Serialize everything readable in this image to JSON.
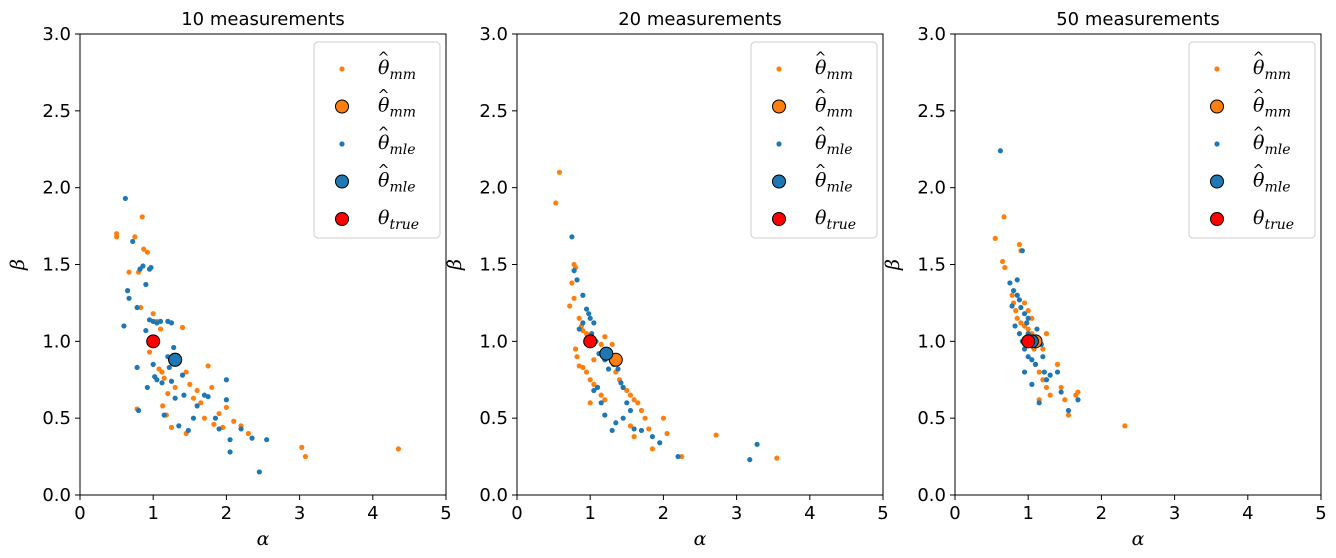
{
  "colors": {
    "mm": "#ff7f0e",
    "mle": "#1f77b4",
    "true": "#ff0000",
    "edge": "#000000"
  },
  "legend": {
    "placement": "top-right",
    "items": [
      {
        "kind": "small",
        "series": "mm",
        "symbol": "θ",
        "hat": true,
        "sub": "mm"
      },
      {
        "kind": "big",
        "series": "mm",
        "symbol": "θ",
        "hat": true,
        "sub": "mm"
      },
      {
        "kind": "small",
        "series": "mle",
        "symbol": "θ",
        "hat": true,
        "sub": "mle"
      },
      {
        "kind": "big",
        "series": "mle",
        "symbol": "θ",
        "hat": true,
        "sub": "mle"
      },
      {
        "kind": "big",
        "series": "true",
        "symbol": "θ",
        "hat": false,
        "sub": "true"
      }
    ]
  },
  "chart_data": [
    {
      "type": "scatter",
      "title": "10 measurements",
      "xlabel": "α",
      "ylabel": "β",
      "xlim": [
        0,
        5
      ],
      "ylim": [
        0,
        3
      ],
      "xticks": [
        0,
        1,
        2,
        3,
        4,
        5
      ],
      "yticks": [
        0.0,
        0.5,
        1.0,
        1.5,
        2.0,
        2.5,
        3.0
      ],
      "grid": false,
      "mm_points": [
        [
          0.5,
          1.7
        ],
        [
          0.5,
          1.68
        ],
        [
          0.75,
          1.68
        ],
        [
          0.85,
          1.81
        ],
        [
          0.87,
          1.6
        ],
        [
          0.92,
          1.58
        ],
        [
          0.67,
          1.45
        ],
        [
          0.8,
          1.45
        ],
        [
          0.83,
          1.22
        ],
        [
          1.0,
          1.18
        ],
        [
          1.05,
          1.13
        ],
        [
          1.1,
          1.08
        ],
        [
          1.08,
          0.82
        ],
        [
          1.12,
          0.8
        ],
        [
          1.15,
          0.76
        ],
        [
          1.2,
          0.66
        ],
        [
          1.13,
          0.58
        ],
        [
          1.18,
          0.52
        ],
        [
          1.25,
          0.44
        ],
        [
          1.3,
          0.7
        ],
        [
          1.4,
          1.09
        ],
        [
          1.45,
          0.8
        ],
        [
          1.5,
          0.72
        ],
        [
          1.55,
          0.63
        ],
        [
          1.6,
          0.68
        ],
        [
          1.65,
          0.6
        ],
        [
          1.7,
          0.5
        ],
        [
          1.75,
          0.84
        ],
        [
          1.8,
          0.7
        ],
        [
          1.83,
          0.46
        ],
        [
          1.9,
          0.53
        ],
        [
          1.95,
          0.44
        ],
        [
          2.0,
          0.57
        ],
        [
          2.1,
          0.48
        ],
        [
          2.2,
          0.45
        ],
        [
          2.3,
          0.4
        ],
        [
          1.45,
          0.4
        ],
        [
          3.03,
          0.31
        ],
        [
          3.08,
          0.25
        ],
        [
          4.35,
          0.3
        ],
        [
          0.78,
          0.56
        ],
        [
          0.95,
          0.93
        ]
      ],
      "mle_points": [
        [
          0.62,
          1.93
        ],
        [
          0.65,
          1.33
        ],
        [
          0.67,
          1.28
        ],
        [
          0.72,
          1.65
        ],
        [
          0.6,
          1.1
        ],
        [
          0.78,
          1.22
        ],
        [
          0.82,
          1.47
        ],
        [
          0.86,
          1.49
        ],
        [
          0.9,
          1.37
        ],
        [
          0.95,
          1.47
        ],
        [
          0.97,
          1.48
        ],
        [
          0.95,
          1.14
        ],
        [
          0.9,
          1.07
        ],
        [
          1.0,
          1.13
        ],
        [
          1.05,
          1.12
        ],
        [
          1.1,
          1.13
        ],
        [
          1.2,
          1.13
        ],
        [
          1.25,
          1.12
        ],
        [
          1.28,
          0.96
        ],
        [
          0.78,
          0.83
        ],
        [
          0.8,
          0.55
        ],
        [
          1.0,
          0.85
        ],
        [
          1.02,
          0.77
        ],
        [
          1.05,
          0.75
        ],
        [
          1.12,
          0.73
        ],
        [
          1.15,
          0.52
        ],
        [
          1.2,
          0.9
        ],
        [
          1.22,
          0.83
        ],
        [
          1.25,
          0.74
        ],
        [
          1.3,
          0.63
        ],
        [
          1.35,
          0.45
        ],
        [
          1.4,
          0.78
        ],
        [
          1.42,
          0.65
        ],
        [
          1.48,
          0.42
        ],
        [
          1.55,
          0.5
        ],
        [
          1.6,
          0.58
        ],
        [
          1.7,
          0.65
        ],
        [
          1.75,
          0.64
        ],
        [
          1.85,
          0.5
        ],
        [
          1.9,
          0.43
        ],
        [
          2.0,
          0.62
        ],
        [
          2.0,
          0.75
        ],
        [
          2.05,
          0.36
        ],
        [
          2.05,
          0.28
        ],
        [
          2.2,
          0.43
        ],
        [
          2.35,
          0.37
        ],
        [
          2.45,
          0.15
        ],
        [
          2.55,
          0.36
        ],
        [
          0.92,
          0.7
        ]
      ],
      "mm_mean": [
        1.3,
        0.88
      ],
      "mle_mean": [
        1.3,
        0.88
      ],
      "true": [
        1.0,
        1.0
      ]
    },
    {
      "type": "scatter",
      "title": "20 measurements",
      "xlabel": "α",
      "ylabel": "β",
      "xlim": [
        0,
        5
      ],
      "ylim": [
        0,
        3
      ],
      "xticks": [
        0,
        1,
        2,
        3,
        4,
        5
      ],
      "yticks": [
        0.0,
        0.5,
        1.0,
        1.5,
        2.0,
        2.5,
        3.0
      ],
      "grid": false,
      "mm_points": [
        [
          0.58,
          2.1
        ],
        [
          0.53,
          1.9
        ],
        [
          0.78,
          1.5
        ],
        [
          0.8,
          1.48
        ],
        [
          0.75,
          1.38
        ],
        [
          0.78,
          1.28
        ],
        [
          0.72,
          1.23
        ],
        [
          0.85,
          1.15
        ],
        [
          0.88,
          1.1
        ],
        [
          0.9,
          1.07
        ],
        [
          0.95,
          1.05
        ],
        [
          0.8,
          0.95
        ],
        [
          0.82,
          0.9
        ],
        [
          0.85,
          0.84
        ],
        [
          0.9,
          0.83
        ],
        [
          0.95,
          0.8
        ],
        [
          1.0,
          0.75
        ],
        [
          1.05,
          0.72
        ],
        [
          1.1,
          0.7
        ],
        [
          1.15,
          0.65
        ],
        [
          1.2,
          0.62
        ],
        [
          1.3,
          0.98
        ],
        [
          1.35,
          0.8
        ],
        [
          1.4,
          0.75
        ],
        [
          1.45,
          0.7
        ],
        [
          1.5,
          0.68
        ],
        [
          1.55,
          0.65
        ],
        [
          1.6,
          0.62
        ],
        [
          1.65,
          0.6
        ],
        [
          1.7,
          0.55
        ],
        [
          1.75,
          0.5
        ],
        [
          1.8,
          0.43
        ],
        [
          1.85,
          0.3
        ],
        [
          2.0,
          0.5
        ],
        [
          2.05,
          0.4
        ],
        [
          2.25,
          0.25
        ],
        [
          2.72,
          0.39
        ],
        [
          3.55,
          0.24
        ],
        [
          1.0,
          0.6
        ],
        [
          1.55,
          0.45
        ],
        [
          1.6,
          0.38
        ],
        [
          1.05,
          0.88
        ],
        [
          1.15,
          0.98
        ],
        [
          1.2,
          1.03
        ]
      ],
      "mle_points": [
        [
          0.75,
          1.68
        ],
        [
          0.78,
          1.46
        ],
        [
          0.82,
          1.4
        ],
        [
          0.9,
          1.3
        ],
        [
          0.95,
          1.21
        ],
        [
          0.98,
          1.18
        ],
        [
          1.0,
          1.15
        ],
        [
          1.05,
          1.12
        ],
        [
          0.9,
          1.12
        ],
        [
          1.02,
          1.05
        ],
        [
          1.08,
          1.0
        ],
        [
          1.12,
          0.92
        ],
        [
          1.2,
          0.88
        ],
        [
          1.25,
          0.82
        ],
        [
          1.32,
          0.85
        ],
        [
          1.38,
          0.82
        ],
        [
          1.42,
          0.73
        ],
        [
          1.45,
          0.7
        ],
        [
          1.5,
          0.6
        ],
        [
          1.55,
          0.55
        ],
        [
          1.1,
          0.7
        ],
        [
          1.15,
          0.6
        ],
        [
          1.2,
          0.52
        ],
        [
          1.3,
          0.42
        ],
        [
          1.05,
          0.68
        ],
        [
          1.45,
          0.5
        ],
        [
          1.6,
          0.43
        ],
        [
          1.7,
          0.42
        ],
        [
          1.85,
          0.38
        ],
        [
          1.95,
          0.34
        ],
        [
          2.2,
          0.25
        ],
        [
          3.18,
          0.23
        ],
        [
          3.28,
          0.33
        ],
        [
          1.35,
          0.47
        ],
        [
          0.85,
          1.08
        ]
      ],
      "mm_mean": [
        1.35,
        0.88
      ],
      "mle_mean": [
        1.22,
        0.92
      ],
      "true": [
        1.0,
        1.0
      ]
    },
    {
      "type": "scatter",
      "title": "50 measurements",
      "xlabel": "α",
      "ylabel": "β",
      "xlim": [
        0,
        5
      ],
      "ylim": [
        0,
        3
      ],
      "xticks": [
        0,
        1,
        2,
        3,
        4,
        5
      ],
      "yticks": [
        0.0,
        0.5,
        1.0,
        1.5,
        2.0,
        2.5,
        3.0
      ],
      "grid": false,
      "mm_points": [
        [
          0.55,
          1.67
        ],
        [
          0.67,
          1.81
        ],
        [
          0.65,
          1.52
        ],
        [
          0.68,
          1.48
        ],
        [
          0.88,
          1.63
        ],
        [
          0.9,
          1.59
        ],
        [
          0.78,
          1.3
        ],
        [
          0.8,
          1.25
        ],
        [
          0.83,
          1.2
        ],
        [
          0.85,
          1.15
        ],
        [
          0.9,
          1.12
        ],
        [
          0.95,
          1.1
        ],
        [
          1.0,
          1.08
        ],
        [
          1.05,
          1.05
        ],
        [
          1.1,
          1.02
        ],
        [
          1.15,
          1.0
        ],
        [
          1.2,
          0.95
        ],
        [
          1.25,
          1.05
        ],
        [
          1.0,
          1.2
        ],
        [
          1.05,
          1.15
        ],
        [
          1.1,
          0.85
        ],
        [
          1.15,
          0.8
        ],
        [
          1.2,
          0.75
        ],
        [
          1.25,
          0.7
        ],
        [
          1.3,
          0.65
        ],
        [
          1.15,
          0.62
        ],
        [
          1.4,
          0.85
        ],
        [
          1.45,
          0.7
        ],
        [
          1.5,
          0.62
        ],
        [
          1.55,
          0.52
        ],
        [
          1.65,
          0.65
        ],
        [
          1.68,
          0.67
        ],
        [
          2.32,
          0.45
        ],
        [
          0.95,
          1.25
        ],
        [
          1.08,
          0.95
        ]
      ],
      "mle_points": [
        [
          0.62,
          2.24
        ],
        [
          0.75,
          1.38
        ],
        [
          0.8,
          1.33
        ],
        [
          0.85,
          1.3
        ],
        [
          0.88,
          1.27
        ],
        [
          0.92,
          1.59
        ],
        [
          0.85,
          1.4
        ],
        [
          0.9,
          1.22
        ],
        [
          0.95,
          1.18
        ],
        [
          1.0,
          1.15
        ],
        [
          0.78,
          1.23
        ],
        [
          0.82,
          1.1
        ],
        [
          0.88,
          1.05
        ],
        [
          0.92,
          1.0
        ],
        [
          0.95,
          0.95
        ],
        [
          1.0,
          0.9
        ],
        [
          1.05,
          0.88
        ],
        [
          1.1,
          0.85
        ],
        [
          1.12,
          1.08
        ],
        [
          1.18,
          0.98
        ],
        [
          1.2,
          0.9
        ],
        [
          1.22,
          0.8
        ],
        [
          1.25,
          0.75
        ],
        [
          0.95,
          0.8
        ],
        [
          1.05,
          0.72
        ],
        [
          1.15,
          0.6
        ],
        [
          1.3,
          0.78
        ],
        [
          1.4,
          0.8
        ],
        [
          1.45,
          0.67
        ],
        [
          1.55,
          0.55
        ],
        [
          1.68,
          0.62
        ],
        [
          1.0,
          1.05
        ],
        [
          0.98,
          1.12
        ],
        [
          1.08,
          1.0
        ]
      ],
      "mm_mean": [
        1.1,
        1.0
      ],
      "mle_mean": [
        1.05,
        1.0
      ],
      "true": [
        1.0,
        1.0
      ]
    }
  ]
}
